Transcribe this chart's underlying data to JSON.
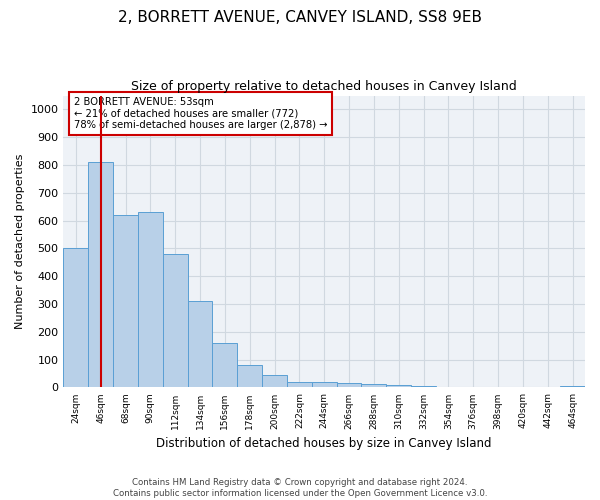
{
  "title1": "2, BORRETT AVENUE, CANVEY ISLAND, SS8 9EB",
  "title2": "Size of property relative to detached houses in Canvey Island",
  "xlabel": "Distribution of detached houses by size in Canvey Island",
  "ylabel": "Number of detached properties",
  "footer1": "Contains HM Land Registry data © Crown copyright and database right 2024.",
  "footer2": "Contains public sector information licensed under the Open Government Licence v3.0.",
  "annotation_line1": "2 BORRETT AVENUE: 53sqm",
  "annotation_line2": "← 21% of detached houses are smaller (772)",
  "annotation_line3": "78% of semi-detached houses are larger (2,878) →",
  "bar_labels": [
    "24sqm",
    "46sqm",
    "68sqm",
    "90sqm",
    "112sqm",
    "134sqm",
    "156sqm",
    "178sqm",
    "200sqm",
    "222sqm",
    "244sqm",
    "266sqm",
    "288sqm",
    "310sqm",
    "332sqm",
    "354sqm",
    "376sqm",
    "398sqm",
    "420sqm",
    "442sqm",
    "464sqm"
  ],
  "bar_values": [
    500,
    810,
    620,
    630,
    480,
    310,
    160,
    80,
    45,
    20,
    20,
    15,
    12,
    8,
    5,
    3,
    2,
    1,
    1,
    1,
    5
  ],
  "bar_color": "#b8d0e8",
  "bar_edge_color": "#5a9fd4",
  "vline_x": 1,
  "vline_color": "#cc0000",
  "annotation_box_color": "#cc0000",
  "ylim": [
    0,
    1050
  ],
  "yticks": [
    0,
    100,
    200,
    300,
    400,
    500,
    600,
    700,
    800,
    900,
    1000
  ],
  "grid_color": "#d0d8e0",
  "bg_color": "#eef2f7",
  "title1_fontsize": 11,
  "title2_fontsize": 9
}
